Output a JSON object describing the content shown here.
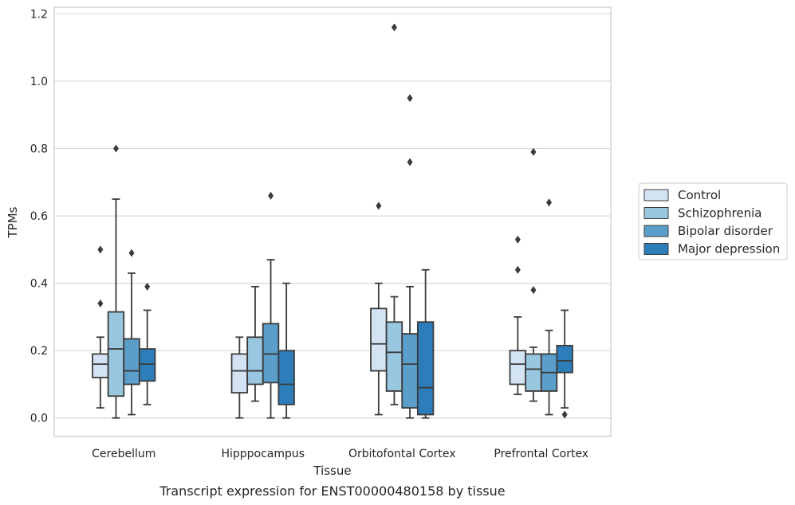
{
  "caption": "Transcript expression for ENST00000480158 by tissue",
  "chart_data": {
    "type": "box",
    "xlabel": "Tissue",
    "ylabel": "TPMs",
    "ylim": [
      -0.055,
      1.22
    ],
    "yticks": [
      0.0,
      0.2,
      0.4,
      0.6,
      0.8,
      1.0,
      1.2
    ],
    "ytick_labels": [
      "0.0",
      "0.2",
      "0.4",
      "0.6",
      "0.8",
      "1.0",
      "1.2"
    ],
    "grid": "horizontal",
    "legend_position": "right",
    "categories": [
      "Cerebellum",
      "Hipppocampus",
      "Orbitofontal Cortex",
      "Prefrontal Cortex"
    ],
    "series": [
      {
        "name": "Control",
        "color": "#d3e3f3",
        "boxes": [
          {
            "whislo": 0.03,
            "q1": 0.12,
            "med": 0.16,
            "q3": 0.19,
            "whishi": 0.24,
            "fliers": [
              0.5,
              0.34
            ]
          },
          {
            "whislo": 0.0,
            "q1": 0.075,
            "med": 0.14,
            "q3": 0.19,
            "whishi": 0.24,
            "fliers": []
          },
          {
            "whislo": 0.01,
            "q1": 0.14,
            "med": 0.22,
            "q3": 0.325,
            "whishi": 0.4,
            "fliers": [
              0.63
            ]
          },
          {
            "whislo": 0.07,
            "q1": 0.1,
            "med": 0.16,
            "q3": 0.2,
            "whishi": 0.3,
            "fliers": [
              0.53,
              0.44
            ]
          }
        ]
      },
      {
        "name": "Schizophrenia",
        "color": "#9ac7e0",
        "boxes": [
          {
            "whislo": 0.0,
            "q1": 0.065,
            "med": 0.205,
            "q3": 0.315,
            "whishi": 0.65,
            "fliers": [
              0.8
            ]
          },
          {
            "whislo": 0.05,
            "q1": 0.1,
            "med": 0.14,
            "q3": 0.24,
            "whishi": 0.39,
            "fliers": []
          },
          {
            "whislo": 0.04,
            "q1": 0.08,
            "med": 0.195,
            "q3": 0.285,
            "whishi": 0.36,
            "fliers": [
              1.16
            ]
          },
          {
            "whislo": 0.05,
            "q1": 0.08,
            "med": 0.145,
            "q3": 0.19,
            "whishi": 0.21,
            "fliers": [
              0.79,
              0.38
            ]
          }
        ]
      },
      {
        "name": "Bipolar disorder",
        "color": "#5b9ec9",
        "boxes": [
          {
            "whislo": 0.01,
            "q1": 0.1,
            "med": 0.14,
            "q3": 0.235,
            "whishi": 0.43,
            "fliers": [
              0.49
            ]
          },
          {
            "whislo": 0.0,
            "q1": 0.105,
            "med": 0.19,
            "q3": 0.28,
            "whishi": 0.47,
            "fliers": [
              0.66
            ]
          },
          {
            "whislo": 0.0,
            "q1": 0.03,
            "med": 0.16,
            "q3": 0.25,
            "whishi": 0.39,
            "fliers": [
              0.95,
              0.76
            ]
          },
          {
            "whislo": 0.01,
            "q1": 0.08,
            "med": 0.135,
            "q3": 0.19,
            "whishi": 0.26,
            "fliers": [
              0.64
            ]
          }
        ]
      },
      {
        "name": "Major depression",
        "color": "#2d7dbb",
        "boxes": [
          {
            "whislo": 0.04,
            "q1": 0.11,
            "med": 0.16,
            "q3": 0.205,
            "whishi": 0.32,
            "fliers": [
              0.39
            ]
          },
          {
            "whislo": 0.0,
            "q1": 0.04,
            "med": 0.1,
            "q3": 0.2,
            "whishi": 0.4,
            "fliers": []
          },
          {
            "whislo": 0.0,
            "q1": 0.01,
            "med": 0.09,
            "q3": 0.285,
            "whishi": 0.44,
            "fliers": []
          },
          {
            "whislo": 0.03,
            "q1": 0.135,
            "med": 0.17,
            "q3": 0.215,
            "whishi": 0.32,
            "fliers": [
              0.01
            ]
          }
        ]
      }
    ]
  }
}
